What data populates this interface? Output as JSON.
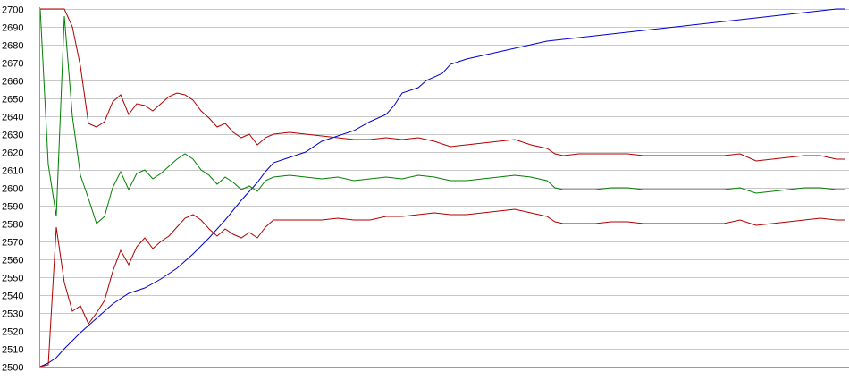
{
  "chart_data": {
    "type": "line",
    "title": "",
    "xlabel": "",
    "ylabel": "",
    "ylim": [
      2500,
      2700
    ],
    "xlim": [
      0,
      100
    ],
    "y_ticks": [
      "2500",
      "2510",
      "2520",
      "2530",
      "2540",
      "2550",
      "2560",
      "2570",
      "2580",
      "2590",
      "2600",
      "2610",
      "2620",
      "2630",
      "2640",
      "2650",
      "2660",
      "2670",
      "2680",
      "2690",
      "2700"
    ],
    "grid": true,
    "legend": "none",
    "series": [
      {
        "color": "#0000cc",
        "points": [
          [
            0,
            2500
          ],
          [
            1,
            2502
          ],
          [
            2,
            2505
          ],
          [
            3,
            2510
          ],
          [
            5,
            2519
          ],
          [
            7,
            2527
          ],
          [
            9,
            2535
          ],
          [
            11,
            2541
          ],
          [
            13,
            2544
          ],
          [
            15,
            2549
          ],
          [
            17,
            2555
          ],
          [
            19,
            2563
          ],
          [
            21,
            2572
          ],
          [
            23,
            2582
          ],
          [
            25,
            2593
          ],
          [
            27,
            2603
          ],
          [
            28,
            2609
          ],
          [
            29,
            2614
          ],
          [
            31,
            2617
          ],
          [
            33,
            2620
          ],
          [
            35,
            2626
          ],
          [
            37,
            2629
          ],
          [
            39,
            2632
          ],
          [
            41,
            2637
          ],
          [
            43,
            2641
          ],
          [
            44,
            2646
          ],
          [
            45,
            2653
          ],
          [
            47,
            2656
          ],
          [
            48,
            2660
          ],
          [
            50,
            2664
          ],
          [
            51,
            2669
          ],
          [
            53,
            2672
          ],
          [
            55,
            2674
          ],
          [
            57,
            2676
          ],
          [
            59,
            2678
          ],
          [
            61,
            2680
          ],
          [
            63,
            2682
          ],
          [
            65,
            2683
          ],
          [
            67,
            2684
          ],
          [
            69,
            2685
          ],
          [
            71,
            2686
          ],
          [
            73,
            2687
          ],
          [
            75,
            2688
          ],
          [
            77,
            2689
          ],
          [
            79,
            2690
          ],
          [
            81,
            2691
          ],
          [
            83,
            2692
          ],
          [
            85,
            2693
          ],
          [
            87,
            2694
          ],
          [
            89,
            2695
          ],
          [
            91,
            2696
          ],
          [
            93,
            2697
          ],
          [
            95,
            2698
          ],
          [
            97,
            2699
          ],
          [
            99,
            2700
          ],
          [
            100,
            2700
          ]
        ]
      },
      {
        "color": "#008000",
        "points": [
          [
            0,
            2700
          ],
          [
            1,
            2613
          ],
          [
            2,
            2584
          ],
          [
            3,
            2696
          ],
          [
            4,
            2640
          ],
          [
            5,
            2607
          ],
          [
            6,
            2594
          ],
          [
            7,
            2580
          ],
          [
            8,
            2584
          ],
          [
            9,
            2600
          ],
          [
            10,
            2609
          ],
          [
            11,
            2599
          ],
          [
            12,
            2608
          ],
          [
            13,
            2610
          ],
          [
            14,
            2605
          ],
          [
            15,
            2608
          ],
          [
            16,
            2612
          ],
          [
            17,
            2616
          ],
          [
            18,
            2619
          ],
          [
            19,
            2616
          ],
          [
            20,
            2610
          ],
          [
            21,
            2607
          ],
          [
            22,
            2602
          ],
          [
            23,
            2606
          ],
          [
            24,
            2603
          ],
          [
            25,
            2599
          ],
          [
            26,
            2601
          ],
          [
            27,
            2598
          ],
          [
            28,
            2604
          ],
          [
            29,
            2606
          ],
          [
            31,
            2607
          ],
          [
            33,
            2606
          ],
          [
            35,
            2605
          ],
          [
            37,
            2606
          ],
          [
            39,
            2604
          ],
          [
            41,
            2605
          ],
          [
            43,
            2606
          ],
          [
            45,
            2605
          ],
          [
            47,
            2607
          ],
          [
            49,
            2606
          ],
          [
            51,
            2604
          ],
          [
            53,
            2604
          ],
          [
            55,
            2605
          ],
          [
            57,
            2606
          ],
          [
            59,
            2607
          ],
          [
            61,
            2606
          ],
          [
            63,
            2604
          ],
          [
            64,
            2600
          ],
          [
            65,
            2599
          ],
          [
            67,
            2599
          ],
          [
            69,
            2599
          ],
          [
            71,
            2600
          ],
          [
            73,
            2600
          ],
          [
            75,
            2599
          ],
          [
            77,
            2599
          ],
          [
            79,
            2599
          ],
          [
            81,
            2599
          ],
          [
            83,
            2599
          ],
          [
            85,
            2599
          ],
          [
            87,
            2600
          ],
          [
            89,
            2597
          ],
          [
            91,
            2598
          ],
          [
            93,
            2599
          ],
          [
            95,
            2600
          ],
          [
            97,
            2600
          ],
          [
            99,
            2599
          ],
          [
            100,
            2599
          ]
        ]
      },
      {
        "color": "#b00000",
        "points": [
          [
            0,
            2700
          ],
          [
            1,
            2700
          ],
          [
            2,
            2700
          ],
          [
            3,
            2700
          ],
          [
            4,
            2690
          ],
          [
            5,
            2668
          ],
          [
            6,
            2636
          ],
          [
            7,
            2634
          ],
          [
            8,
            2637
          ],
          [
            9,
            2648
          ],
          [
            10,
            2652
          ],
          [
            11,
            2641
          ],
          [
            12,
            2647
          ],
          [
            13,
            2646
          ],
          [
            14,
            2643
          ],
          [
            15,
            2647
          ],
          [
            16,
            2651
          ],
          [
            17,
            2653
          ],
          [
            18,
            2652
          ],
          [
            19,
            2649
          ],
          [
            20,
            2643
          ],
          [
            21,
            2639
          ],
          [
            22,
            2634
          ],
          [
            23,
            2636
          ],
          [
            24,
            2631
          ],
          [
            25,
            2628
          ],
          [
            26,
            2630
          ],
          [
            27,
            2624
          ],
          [
            28,
            2628
          ],
          [
            29,
            2630
          ],
          [
            31,
            2631
          ],
          [
            33,
            2630
          ],
          [
            35,
            2629
          ],
          [
            37,
            2628
          ],
          [
            39,
            2627
          ],
          [
            41,
            2627
          ],
          [
            43,
            2628
          ],
          [
            45,
            2627
          ],
          [
            47,
            2628
          ],
          [
            49,
            2626
          ],
          [
            51,
            2623
          ],
          [
            53,
            2624
          ],
          [
            55,
            2625
          ],
          [
            57,
            2626
          ],
          [
            59,
            2627
          ],
          [
            61,
            2624
          ],
          [
            63,
            2622
          ],
          [
            64,
            2619
          ],
          [
            65,
            2618
          ],
          [
            67,
            2619
          ],
          [
            69,
            2619
          ],
          [
            71,
            2619
          ],
          [
            73,
            2619
          ],
          [
            75,
            2618
          ],
          [
            77,
            2618
          ],
          [
            79,
            2618
          ],
          [
            81,
            2618
          ],
          [
            83,
            2618
          ],
          [
            85,
            2618
          ],
          [
            87,
            2619
          ],
          [
            89,
            2615
          ],
          [
            91,
            2616
          ],
          [
            93,
            2617
          ],
          [
            95,
            2618
          ],
          [
            97,
            2618
          ],
          [
            99,
            2616
          ],
          [
            100,
            2616
          ]
        ]
      },
      {
        "color": "#b00000",
        "points": [
          [
            0,
            2500
          ],
          [
            1,
            2501
          ],
          [
            2,
            2578
          ],
          [
            3,
            2547
          ],
          [
            4,
            2531
          ],
          [
            5,
            2534
          ],
          [
            6,
            2524
          ],
          [
            7,
            2530
          ],
          [
            8,
            2537
          ],
          [
            9,
            2553
          ],
          [
            10,
            2565
          ],
          [
            11,
            2557
          ],
          [
            12,
            2567
          ],
          [
            13,
            2572
          ],
          [
            14,
            2566
          ],
          [
            15,
            2570
          ],
          [
            16,
            2573
          ],
          [
            17,
            2578
          ],
          [
            18,
            2583
          ],
          [
            19,
            2585
          ],
          [
            20,
            2582
          ],
          [
            21,
            2577
          ],
          [
            22,
            2573
          ],
          [
            23,
            2577
          ],
          [
            24,
            2574
          ],
          [
            25,
            2572
          ],
          [
            26,
            2575
          ],
          [
            27,
            2572
          ],
          [
            28,
            2578
          ],
          [
            29,
            2582
          ],
          [
            31,
            2582
          ],
          [
            33,
            2582
          ],
          [
            35,
            2582
          ],
          [
            37,
            2583
          ],
          [
            39,
            2582
          ],
          [
            41,
            2582
          ],
          [
            43,
            2584
          ],
          [
            45,
            2584
          ],
          [
            47,
            2585
          ],
          [
            49,
            2586
          ],
          [
            51,
            2585
          ],
          [
            53,
            2585
          ],
          [
            55,
            2586
          ],
          [
            57,
            2587
          ],
          [
            59,
            2588
          ],
          [
            61,
            2586
          ],
          [
            63,
            2584
          ],
          [
            64,
            2581
          ],
          [
            65,
            2580
          ],
          [
            67,
            2580
          ],
          [
            69,
            2580
          ],
          [
            71,
            2581
          ],
          [
            73,
            2581
          ],
          [
            75,
            2580
          ],
          [
            77,
            2580
          ],
          [
            79,
            2580
          ],
          [
            81,
            2580
          ],
          [
            83,
            2580
          ],
          [
            85,
            2580
          ],
          [
            87,
            2582
          ],
          [
            89,
            2579
          ],
          [
            91,
            2580
          ],
          [
            93,
            2581
          ],
          [
            95,
            2582
          ],
          [
            97,
            2583
          ],
          [
            99,
            2582
          ],
          [
            100,
            2582
          ]
        ]
      }
    ]
  }
}
